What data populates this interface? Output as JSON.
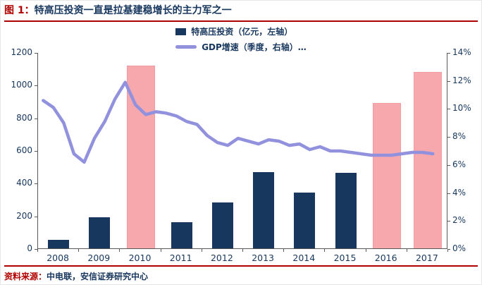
{
  "header": {
    "figure_label": "图 1：",
    "title": "特高压投资一直是拉基建稳增长的主力军之一"
  },
  "legend": {
    "bars_label": "特高压投资（亿元，左轴）",
    "line_label": "GDP增速（季度，右轴）…"
  },
  "footer": {
    "source_label": "资料来源：",
    "source_text": "中电联，安信证券研究中心"
  },
  "colors": {
    "accent_red": "#b00000",
    "navy_text": "#17375e",
    "bar_navy": "#17375e",
    "bar_pink_highlight": "#f7a8ad",
    "gdp_line_lavender": "#9191de"
  },
  "chart_data": {
    "type": "combo-bar-line",
    "title": "特高压投资一直是拉基建稳增长的主力军之一",
    "categories": [
      "2008",
      "2009",
      "2010",
      "2011",
      "2012",
      "2013",
      "2014",
      "2015",
      "2016",
      "2017"
    ],
    "bar_series": {
      "name": "特高压投资（亿元，左轴）",
      "axis": "left",
      "values": [
        50,
        190,
        1120,
        160,
        280,
        465,
        340,
        460,
        890,
        1080
      ],
      "highlighted": [
        false,
        false,
        true,
        false,
        false,
        false,
        false,
        false,
        true,
        true
      ],
      "highlighted_years": [
        "2010",
        "2016",
        "2017"
      ]
    },
    "line_series": {
      "name": "GDP增速（季度，右轴）",
      "axis": "right",
      "frequency": "quarterly",
      "start": "2008Q1",
      "values_pct": [
        10.6,
        10.1,
        9.0,
        6.8,
        6.2,
        7.9,
        9.1,
        10.7,
        11.9,
        10.3,
        9.6,
        9.8,
        9.7,
        9.5,
        9.1,
        8.9,
        8.1,
        7.6,
        7.4,
        7.9,
        7.7,
        7.5,
        7.8,
        7.7,
        7.4,
        7.5,
        7.1,
        7.3,
        7.0,
        7.0,
        6.9,
        6.8,
        6.7,
        6.7,
        6.7,
        6.8,
        6.9,
        6.9,
        6.8
      ]
    },
    "left_axis": {
      "min": 0,
      "max": 1200,
      "ticks": [
        0,
        200,
        400,
        600,
        800,
        1000,
        1200
      ]
    },
    "right_axis": {
      "min": 0,
      "max": 14,
      "ticks": [
        "0%",
        "2%",
        "4%",
        "6%",
        "8%",
        "10%",
        "12%",
        "14%"
      ]
    },
    "grid": false,
    "legend_position": "top-center"
  }
}
